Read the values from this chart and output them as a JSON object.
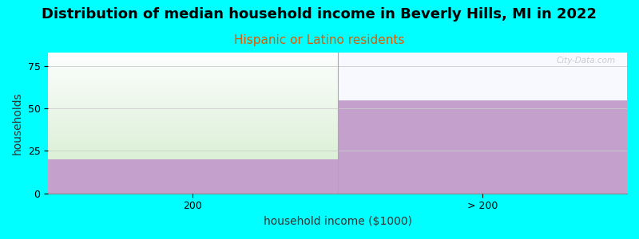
{
  "title": "Distribution of median household income in Beverly Hills, MI in 2022",
  "subtitle": "Hispanic or Latino residents",
  "subtitle_color": "#e05a00",
  "xlabel": "household income ($1000)",
  "ylabel": "households",
  "background_color": "#00ffff",
  "plot_bg_color": "#ffffff",
  "categories": [
    "200",
    "> 200"
  ],
  "values": [
    20,
    55
  ],
  "purple_color": "#c4a0cc",
  "green_top_color": "#dff0d8",
  "ylim": [
    0,
    83
  ],
  "yticks": [
    0,
    25,
    50,
    75
  ],
  "watermark": "City-Data.com",
  "title_fontsize": 13,
  "subtitle_fontsize": 11,
  "label_fontsize": 10,
  "tick_fontsize": 9
}
